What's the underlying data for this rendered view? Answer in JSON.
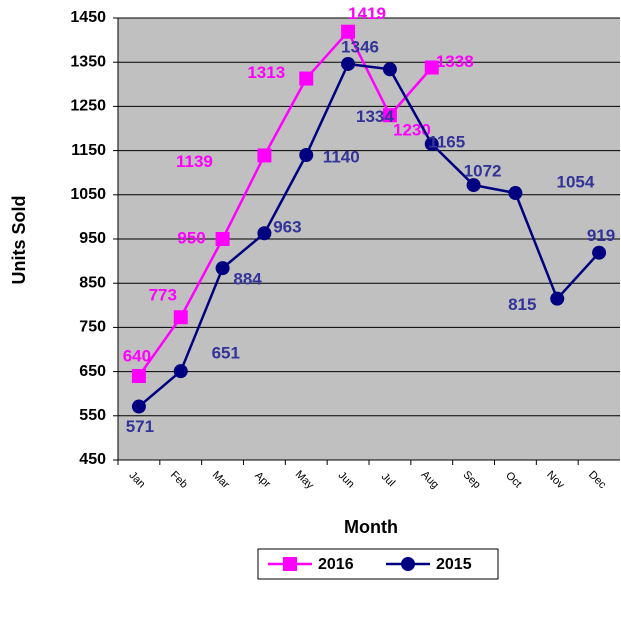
{
  "chart_data": {
    "type": "line",
    "x_label": "Month",
    "y_label": "Units Sold",
    "categories": [
      "Jan",
      "Feb",
      "Mar",
      "Apr",
      "May",
      "Jun",
      "Jul",
      "Aug",
      "Sep",
      "Oct",
      "Nov",
      "Dec"
    ],
    "series": [
      {
        "name": "2016",
        "color": "#ff00ff",
        "marker": "square",
        "values": [
          640,
          773,
          950,
          1139,
          1313,
          1419,
          1230,
          1338,
          null,
          null,
          null,
          null
        ]
      },
      {
        "name": "2015",
        "color": "#000080",
        "marker": "circle",
        "values": [
          571,
          651,
          884,
          963,
          1140,
          1346,
          1334,
          1165,
          1072,
          1054,
          815,
          919
        ]
      }
    ],
    "ylim": [
      450,
      1450
    ],
    "yticks": [
      450,
      550,
      650,
      750,
      850,
      950,
      1050,
      1150,
      1250,
      1350,
      1450
    ],
    "grid": true,
    "legend": "bottom"
  }
}
